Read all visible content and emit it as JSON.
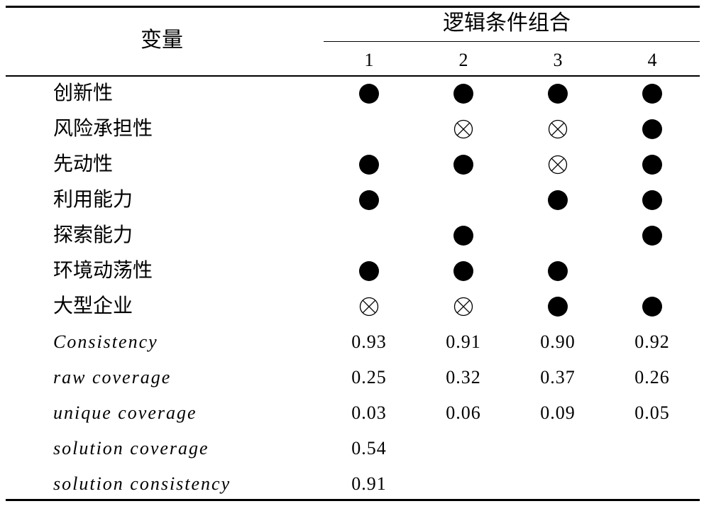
{
  "table": {
    "header": {
      "variable": "变量",
      "group": "逻辑条件组合",
      "columns": [
        "1",
        "2",
        "3",
        "4"
      ]
    },
    "legend_marks": {
      "present": "filled-circle",
      "absent": "circled-x"
    },
    "condition_rows": [
      {
        "label": "创新性",
        "cells": [
          "present",
          "present",
          "present",
          "present"
        ]
      },
      {
        "label": "风险承担性",
        "cells": [
          "",
          "absent",
          "absent",
          "present"
        ]
      },
      {
        "label": "先动性",
        "cells": [
          "present",
          "present",
          "absent",
          "present"
        ]
      },
      {
        "label": "利用能力",
        "cells": [
          "present",
          "",
          "present",
          "present"
        ]
      },
      {
        "label": "探索能力",
        "cells": [
          "",
          "present",
          "",
          "present"
        ]
      },
      {
        "label": "环境动荡性",
        "cells": [
          "present",
          "present",
          "present",
          ""
        ]
      },
      {
        "label": "大型企业",
        "cells": [
          "absent",
          "absent",
          "present",
          "present"
        ]
      }
    ],
    "stat_rows": [
      {
        "label": "Consistency",
        "values": [
          "0.93",
          "0.91",
          "0.90",
          "0.92"
        ]
      },
      {
        "label": "raw coverage",
        "values": [
          "0.25",
          "0.32",
          "0.37",
          "0.26"
        ]
      },
      {
        "label": "unique coverage",
        "values": [
          "0.03",
          "0.06",
          "0.09",
          "0.05"
        ]
      },
      {
        "label": "solution coverage",
        "values": [
          "0.54",
          "",
          "",
          ""
        ]
      },
      {
        "label": "solution consistency",
        "values": [
          "0.91",
          "",
          "",
          ""
        ]
      }
    ]
  }
}
